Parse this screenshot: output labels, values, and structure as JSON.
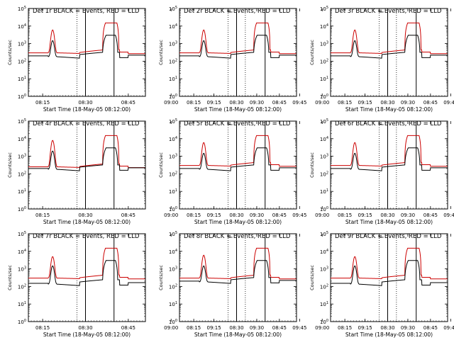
{
  "chart_data": {
    "type": "line",
    "yscale": "log",
    "ylim": [
      1,
      100000
    ],
    "xlim_minutes": [
      490,
      531
    ],
    "xtick_labels": [
      "08:15",
      "08:30",
      "08:45",
      "09:00",
      "09:15",
      "09:30",
      "09:45"
    ],
    "ytick_labels": [
      "10^0",
      "10^1",
      "10^2",
      "10^3",
      "10^4",
      "10^5"
    ],
    "xlabel": "Start Time (18-May-05 08:12:00)",
    "ylabel": "Counts/sec",
    "legend_text": "BLACK = Events, RED = LLD",
    "series_colors": {
      "events": "#000000",
      "lld": "#cc0000"
    },
    "vertical_solid_lines": [
      "08:30",
      "08:40"
    ],
    "vertical_dotted_lines": [
      "08:27",
      "09:26"
    ],
    "panels": [
      {
        "label": "Det 1r",
        "events_peak1": 1500,
        "lld_peak1": 6000,
        "events_peak2": 3000,
        "lld_peak2": 15000,
        "events_base": 200,
        "lld_base": 300
      },
      {
        "label": "Det 2r",
        "events_peak1": 1500,
        "lld_peak1": 6000,
        "events_peak2": 3000,
        "lld_peak2": 15000,
        "events_base": 200,
        "lld_base": 300
      },
      {
        "label": "Det 3r",
        "events_peak1": 1500,
        "lld_peak1": 6000,
        "events_peak2": 3000,
        "lld_peak2": 15000,
        "events_base": 200,
        "lld_base": 300
      },
      {
        "label": "Det 4r",
        "events_peak1": 2000,
        "lld_peak1": 8000,
        "events_peak2": 3000,
        "lld_peak2": 15000,
        "events_base": 200,
        "lld_base": 250
      },
      {
        "label": "Det 5r",
        "events_peak1": 1500,
        "lld_peak1": 6000,
        "events_peak2": 3000,
        "lld_peak2": 15000,
        "events_base": 200,
        "lld_base": 300
      },
      {
        "label": "Det 6r",
        "events_peak1": 1500,
        "lld_peak1": 6000,
        "events_peak2": 3000,
        "lld_peak2": 15000,
        "events_base": 200,
        "lld_base": 300
      },
      {
        "label": "Det 7r",
        "events_peak1": 1500,
        "lld_peak1": 5000,
        "events_peak2": 3000,
        "lld_peak2": 15000,
        "events_base": 150,
        "lld_base": 300
      },
      {
        "label": "Det 8r",
        "events_peak1": 1500,
        "lld_peak1": 6000,
        "events_peak2": 3000,
        "lld_peak2": 15000,
        "events_base": 200,
        "lld_base": 300
      },
      {
        "label": "Det 9r",
        "events_peak1": 1500,
        "lld_peak1": 5000,
        "events_peak2": 3000,
        "lld_peak2": 15000,
        "events_base": 150,
        "lld_base": 300
      }
    ]
  }
}
